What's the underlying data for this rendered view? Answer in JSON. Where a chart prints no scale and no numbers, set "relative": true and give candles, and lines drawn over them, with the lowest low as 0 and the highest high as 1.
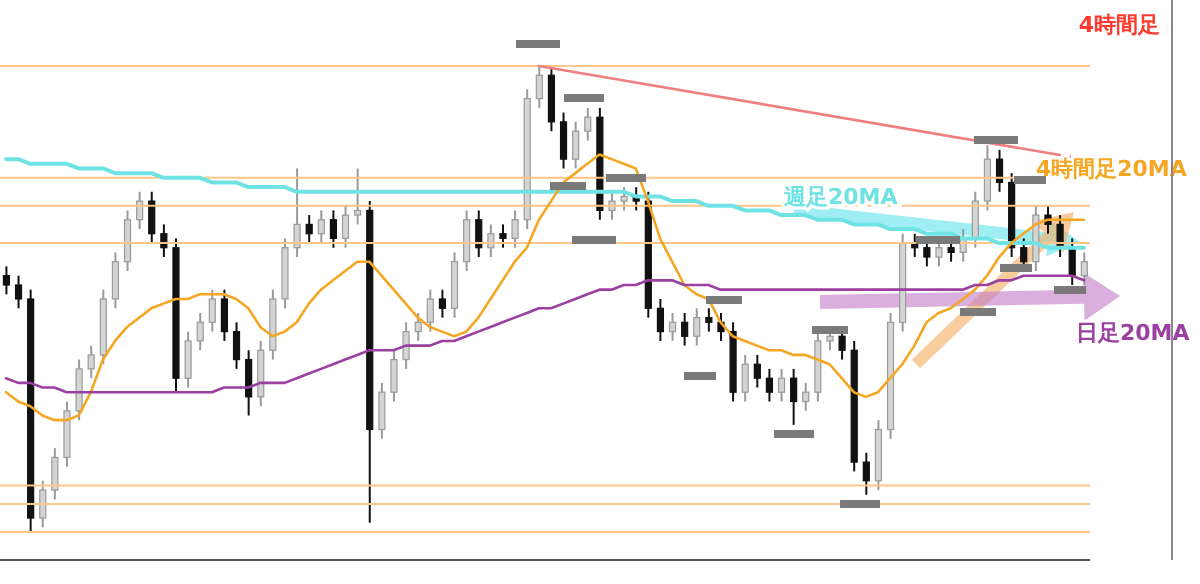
{
  "chart_data": {
    "type": "candlestick",
    "title": "4時間足",
    "relative": true,
    "categories": [
      null,
      null,
      null,
      null,
      null,
      null,
      null,
      null,
      null,
      null,
      null,
      null,
      null,
      null,
      null,
      null,
      null,
      null,
      null,
      null,
      null,
      null,
      null,
      null,
      null,
      null,
      null,
      null,
      null,
      null,
      null,
      null,
      null,
      null,
      null,
      null,
      null,
      null,
      null,
      null,
      null,
      null,
      null,
      null,
      null,
      null,
      null,
      null,
      null,
      null,
      null,
      null,
      null,
      null,
      null,
      null,
      null,
      null,
      null,
      null,
      null,
      null,
      null,
      null,
      null,
      null,
      null,
      null,
      null,
      null,
      null,
      null,
      null,
      null,
      null,
      null,
      null,
      null,
      null,
      null,
      null,
      null,
      null,
      null,
      null,
      null,
      null,
      null,
      null,
      null
    ],
    "ohlc": [
      [
        0.55,
        0.57,
        0.51,
        0.53
      ],
      [
        0.53,
        0.55,
        0.48,
        0.5
      ],
      [
        0.5,
        0.52,
        0.0,
        0.03
      ],
      [
        0.03,
        0.11,
        0.01,
        0.09
      ],
      [
        0.09,
        0.18,
        0.07,
        0.16
      ],
      [
        0.16,
        0.28,
        0.14,
        0.26
      ],
      [
        0.26,
        0.37,
        0.24,
        0.35
      ],
      [
        0.35,
        0.4,
        0.33,
        0.38
      ],
      [
        0.38,
        0.52,
        0.36,
        0.5
      ],
      [
        0.5,
        0.6,
        0.48,
        0.58
      ],
      [
        0.58,
        0.69,
        0.56,
        0.67
      ],
      [
        0.67,
        0.73,
        0.65,
        0.71
      ],
      [
        0.71,
        0.73,
        0.62,
        0.64
      ],
      [
        0.64,
        0.66,
        0.59,
        0.61
      ],
      [
        0.61,
        0.63,
        0.3,
        0.33
      ],
      [
        0.33,
        0.43,
        0.31,
        0.41
      ],
      [
        0.41,
        0.47,
        0.39,
        0.45
      ],
      [
        0.45,
        0.52,
        0.43,
        0.5
      ],
      [
        0.5,
        0.52,
        0.41,
        0.43
      ],
      [
        0.43,
        0.45,
        0.35,
        0.37
      ],
      [
        0.37,
        0.39,
        0.25,
        0.29
      ],
      [
        0.29,
        0.41,
        0.27,
        0.39
      ],
      [
        0.39,
        0.52,
        0.37,
        0.5
      ],
      [
        0.5,
        0.63,
        0.48,
        0.61
      ],
      [
        0.61,
        0.78,
        0.59,
        0.66
      ],
      [
        0.66,
        0.68,
        0.62,
        0.64
      ],
      [
        0.64,
        0.69,
        0.62,
        0.67
      ],
      [
        0.67,
        0.69,
        0.61,
        0.63
      ],
      [
        0.63,
        0.7,
        0.61,
        0.68
      ],
      [
        0.68,
        0.78,
        0.66,
        0.69
      ],
      [
        0.69,
        0.71,
        0.02,
        0.22
      ],
      [
        0.22,
        0.32,
        0.2,
        0.3
      ],
      [
        0.3,
        0.39,
        0.28,
        0.37
      ],
      [
        0.37,
        0.45,
        0.35,
        0.43
      ],
      [
        0.43,
        0.47,
        0.41,
        0.45
      ],
      [
        0.45,
        0.52,
        0.43,
        0.5
      ],
      [
        0.5,
        0.52,
        0.46,
        0.48
      ],
      [
        0.48,
        0.6,
        0.46,
        0.58
      ],
      [
        0.58,
        0.69,
        0.56,
        0.67
      ],
      [
        0.67,
        0.69,
        0.59,
        0.61
      ],
      [
        0.61,
        0.66,
        0.59,
        0.64
      ],
      [
        0.64,
        0.66,
        0.61,
        0.63
      ],
      [
        0.63,
        0.69,
        0.61,
        0.67
      ],
      [
        0.67,
        0.95,
        0.65,
        0.93
      ],
      [
        0.93,
        1.0,
        0.91,
        0.98
      ],
      [
        0.98,
        1.0,
        0.86,
        0.88
      ],
      [
        0.88,
        0.9,
        0.78,
        0.8
      ],
      [
        0.8,
        0.88,
        0.78,
        0.86
      ],
      [
        0.86,
        0.91,
        0.84,
        0.89
      ],
      [
        0.89,
        0.91,
        0.67,
        0.69
      ],
      [
        0.69,
        0.73,
        0.67,
        0.71
      ],
      [
        0.71,
        0.74,
        0.69,
        0.72
      ],
      [
        0.72,
        0.74,
        0.69,
        0.71
      ],
      [
        0.71,
        0.73,
        0.46,
        0.48
      ],
      [
        0.48,
        0.5,
        0.41,
        0.43
      ],
      [
        0.43,
        0.47,
        0.41,
        0.45
      ],
      [
        0.45,
        0.47,
        0.4,
        0.42
      ],
      [
        0.42,
        0.48,
        0.4,
        0.46
      ],
      [
        0.46,
        0.48,
        0.43,
        0.45
      ],
      [
        0.45,
        0.47,
        0.41,
        0.43
      ],
      [
        0.43,
        0.45,
        0.28,
        0.3
      ],
      [
        0.3,
        0.38,
        0.28,
        0.36
      ],
      [
        0.36,
        0.38,
        0.31,
        0.33
      ],
      [
        0.33,
        0.35,
        0.28,
        0.3
      ],
      [
        0.3,
        0.35,
        0.28,
        0.33
      ],
      [
        0.33,
        0.35,
        0.23,
        0.28
      ],
      [
        0.28,
        0.32,
        0.26,
        0.3
      ],
      [
        0.3,
        0.43,
        0.28,
        0.41
      ],
      [
        0.41,
        0.44,
        0.39,
        0.42
      ],
      [
        0.42,
        0.44,
        0.37,
        0.39
      ],
      [
        0.39,
        0.41,
        0.13,
        0.15
      ],
      [
        0.15,
        0.17,
        0.08,
        0.11
      ],
      [
        0.11,
        0.24,
        0.09,
        0.22
      ],
      [
        0.22,
        0.47,
        0.2,
        0.45
      ],
      [
        0.45,
        0.64,
        0.43,
        0.62
      ],
      [
        0.62,
        0.64,
        0.59,
        0.61
      ],
      [
        0.61,
        0.63,
        0.57,
        0.59
      ],
      [
        0.59,
        0.63,
        0.57,
        0.61
      ],
      [
        0.61,
        0.63,
        0.58,
        0.6
      ],
      [
        0.6,
        0.65,
        0.58,
        0.63
      ],
      [
        0.63,
        0.73,
        0.61,
        0.71
      ],
      [
        0.71,
        0.83,
        0.69,
        0.8
      ],
      [
        0.8,
        0.82,
        0.73,
        0.75
      ],
      [
        0.75,
        0.77,
        0.59,
        0.61
      ],
      [
        0.61,
        0.63,
        0.56,
        0.58
      ],
      [
        0.58,
        0.7,
        0.56,
        0.68
      ],
      [
        0.68,
        0.7,
        0.64,
        0.66
      ],
      [
        0.66,
        0.68,
        0.59,
        0.61
      ],
      [
        0.61,
        0.63,
        0.53,
        0.55
      ],
      [
        0.55,
        0.6,
        0.53,
        0.58
      ]
    ],
    "series": [
      {
        "type": "line",
        "name": "週足20MA",
        "color": "#6fe3e3",
        "values": [
          0.8,
          0.8,
          0.79,
          0.79,
          0.79,
          0.79,
          0.78,
          0.78,
          0.78,
          0.77,
          0.77,
          0.77,
          0.77,
          0.76,
          0.76,
          0.76,
          0.76,
          0.75,
          0.75,
          0.75,
          0.74,
          0.74,
          0.74,
          0.74,
          0.73,
          0.73,
          0.73,
          0.73,
          0.73,
          0.73,
          0.73,
          0.73,
          0.73,
          0.73,
          0.73,
          0.73,
          0.73,
          0.73,
          0.73,
          0.73,
          0.73,
          0.73,
          0.73,
          0.73,
          0.73,
          0.73,
          0.73,
          0.73,
          0.73,
          0.73,
          0.73,
          0.73,
          0.72,
          0.72,
          0.72,
          0.71,
          0.71,
          0.71,
          0.7,
          0.7,
          0.7,
          0.69,
          0.69,
          0.69,
          0.68,
          0.68,
          0.68,
          0.67,
          0.67,
          0.67,
          0.66,
          0.66,
          0.66,
          0.65,
          0.65,
          0.65,
          0.64,
          0.64,
          0.64,
          0.63,
          0.63,
          0.63,
          0.62,
          0.62,
          0.62,
          0.62,
          0.61,
          0.61,
          0.61,
          0.61
        ]
      },
      {
        "type": "line",
        "name": "4時間足20MA",
        "color": "#f5a623",
        "values": [
          0.3,
          0.28,
          0.27,
          0.25,
          0.24,
          0.24,
          0.25,
          0.3,
          0.37,
          0.41,
          0.44,
          0.46,
          0.48,
          0.49,
          0.5,
          0.5,
          0.51,
          0.51,
          0.51,
          0.5,
          0.48,
          0.44,
          0.42,
          0.43,
          0.45,
          0.49,
          0.52,
          0.54,
          0.56,
          0.58,
          0.58,
          0.55,
          0.52,
          0.49,
          0.46,
          0.44,
          0.43,
          0.42,
          0.43,
          0.46,
          0.5,
          0.54,
          0.58,
          0.61,
          0.67,
          0.71,
          0.75,
          0.77,
          0.79,
          0.81,
          0.8,
          0.79,
          0.78,
          0.71,
          0.63,
          0.58,
          0.53,
          0.51,
          0.5,
          0.45,
          0.42,
          0.41,
          0.4,
          0.39,
          0.39,
          0.38,
          0.38,
          0.37,
          0.36,
          0.33,
          0.3,
          0.29,
          0.3,
          0.33,
          0.36,
          0.4,
          0.45,
          0.47,
          0.48,
          0.5,
          0.52,
          0.55,
          0.59,
          0.62,
          0.64,
          0.66,
          0.67,
          0.67,
          0.67,
          0.67
        ]
      },
      {
        "type": "line",
        "name": "日足20MA",
        "color": "#9b3fa0",
        "values": [
          0.33,
          0.32,
          0.32,
          0.31,
          0.31,
          0.3,
          0.3,
          0.3,
          0.3,
          0.3,
          0.3,
          0.3,
          0.3,
          0.3,
          0.3,
          0.3,
          0.3,
          0.3,
          0.31,
          0.31,
          0.31,
          0.32,
          0.32,
          0.32,
          0.33,
          0.34,
          0.35,
          0.36,
          0.37,
          0.38,
          0.39,
          0.39,
          0.39,
          0.4,
          0.4,
          0.4,
          0.41,
          0.41,
          0.42,
          0.43,
          0.44,
          0.45,
          0.46,
          0.47,
          0.48,
          0.48,
          0.49,
          0.5,
          0.51,
          0.52,
          0.52,
          0.53,
          0.53,
          0.54,
          0.54,
          0.54,
          0.53,
          0.53,
          0.53,
          0.52,
          0.52,
          0.52,
          0.52,
          0.52,
          0.52,
          0.52,
          0.52,
          0.52,
          0.52,
          0.52,
          0.52,
          0.52,
          0.52,
          0.52,
          0.52,
          0.52,
          0.52,
          0.52,
          0.52,
          0.52,
          0.53,
          0.53,
          0.54,
          0.54,
          0.55,
          0.55,
          0.55,
          0.55,
          0.55,
          0.54
        ]
      },
      {
        "type": "line",
        "color": "#f08080",
        "values": [
          null,
          null,
          null,
          null,
          null,
          null,
          null,
          null,
          null,
          null,
          null,
          null,
          null,
          null,
          null,
          null,
          null,
          null,
          null,
          null,
          null,
          null,
          null,
          null,
          null,
          null,
          null,
          null,
          null,
          null,
          null,
          null,
          null,
          null,
          null,
          null,
          null,
          null,
          null,
          null,
          null,
          null,
          null,
          null,
          1.0,
          null,
          null,
          null,
          null,
          null,
          null,
          null,
          null,
          null,
          null,
          null,
          null,
          null,
          null,
          null,
          null,
          null,
          null,
          null,
          null,
          null,
          null,
          null,
          null,
          null,
          null,
          null,
          null,
          null,
          null,
          null,
          null,
          null,
          null,
          null,
          null,
          null,
          null,
          null,
          null,
          null,
          null,
          null,
          null,
          0.8
        ]
      }
    ],
    "ref_lines": [
      {
        "axis": "y",
        "value": 1.0,
        "color": "#ffc58a"
      },
      {
        "axis": "y",
        "value": 0.76,
        "color": "#ffc58a"
      },
      {
        "axis": "y",
        "value": 0.7,
        "color": "#ffc58a"
      },
      {
        "axis": "y",
        "value": 0.62,
        "color": "#ffc58a"
      },
      {
        "axis": "y",
        "value": 0.1,
        "color": "#ffc58a"
      },
      {
        "axis": "y",
        "value": 0.06,
        "color": "#ffc58a"
      },
      {
        "axis": "y",
        "value": 0.0,
        "color": "#ffc58a"
      }
    ]
  }
}
